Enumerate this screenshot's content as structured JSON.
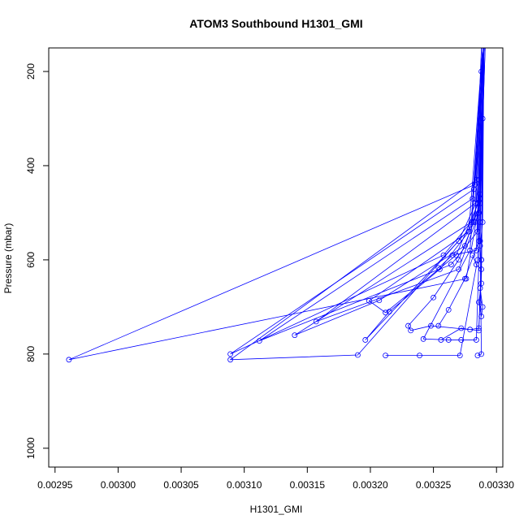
{
  "chart_data": {
    "type": "line",
    "title": "ATOM3 Southbound H1301_GMI",
    "xlabel": "H1301_GMI",
    "ylabel": "Pressure (mbar)",
    "xlim": [
      0.002945,
      0.003305
    ],
    "ylim": [
      1040,
      150
    ],
    "y_reversed": true,
    "grid": false,
    "series_color": "#0000ff",
    "marker": "open-circle",
    "x_ticks": [
      "0.00295",
      "0.00300",
      "0.00305",
      "0.00310",
      "0.00315",
      "0.00320",
      "0.00325",
      "0.00330"
    ],
    "x_tick_values": [
      0.00295,
      0.003,
      0.00305,
      0.0031,
      0.00315,
      0.0032,
      0.00325,
      0.0033
    ],
    "y_ticks": [
      "200",
      "400",
      "600",
      "800",
      "1000"
    ],
    "y_tick_values": [
      200,
      400,
      600,
      800,
      1000
    ],
    "series": [
      {
        "points": [
          [
            0.003288,
            200
          ],
          [
            0.003286,
            430
          ],
          [
            0.003282,
            520
          ],
          [
            0.00327,
            600
          ],
          [
            0.00325,
            680
          ],
          [
            0.00323,
            740
          ],
          [
            0.003232,
            750
          ],
          [
            0.003248,
            740
          ],
          [
            0.003286,
            750
          ],
          [
            0.003288,
            600
          ],
          [
            0.003289,
            300
          ],
          [
            0.00329,
            150
          ]
        ]
      },
      {
        "points": [
          [
            0.003289,
            150
          ],
          [
            0.003285,
            480
          ],
          [
            0.003278,
            540
          ],
          [
            0.003255,
            620
          ],
          [
            0.003215,
            710
          ],
          [
            0.003196,
            770
          ],
          [
            0.00327,
            560
          ],
          [
            0.003287,
            460
          ],
          [
            0.00329,
            150
          ]
        ]
      },
      {
        "points": [
          [
            0.00329,
            150
          ],
          [
            0.003283,
            440
          ],
          [
            0.002961,
            812
          ],
          [
            0.003276,
            640
          ],
          [
            0.003287,
            470
          ],
          [
            0.003291,
            150
          ]
        ]
      },
      {
        "points": [
          [
            0.003288,
            150
          ],
          [
            0.003284,
            430
          ],
          [
            0.003089,
            812
          ],
          [
            0.00319,
            802
          ],
          [
            0.003283,
            520
          ],
          [
            0.00329,
            150
          ]
        ]
      },
      {
        "points": [
          [
            0.003289,
            150
          ],
          [
            0.003282,
            450
          ],
          [
            0.003089,
            800
          ],
          [
            0.003258,
            590
          ],
          [
            0.003286,
            500
          ],
          [
            0.00329,
            150
          ]
        ]
      },
      {
        "points": [
          [
            0.00329,
            150
          ],
          [
            0.003281,
            470
          ],
          [
            0.003112,
            772
          ],
          [
            0.003264,
            610
          ],
          [
            0.003285,
            540
          ],
          [
            0.00329,
            150
          ]
        ]
      },
      {
        "points": [
          [
            0.003289,
            150
          ],
          [
            0.00328,
            520
          ],
          [
            0.00314,
            760
          ],
          [
            0.003207,
            686
          ],
          [
            0.003275,
            570
          ],
          [
            0.003287,
            480
          ],
          [
            0.00329,
            150
          ]
        ]
      },
      {
        "points": [
          [
            0.00329,
            150
          ],
          [
            0.003283,
            480
          ],
          [
            0.003157,
            731
          ],
          [
            0.00327,
            620
          ],
          [
            0.003286,
            500
          ],
          [
            0.00329,
            150
          ]
        ]
      },
      {
        "points": [
          [
            0.003289,
            150
          ],
          [
            0.003278,
            540
          ],
          [
            0.003199,
            687
          ],
          [
            0.003212,
            712
          ],
          [
            0.003268,
            590
          ],
          [
            0.003287,
            470
          ],
          [
            0.003291,
            150
          ]
        ]
      },
      {
        "points": [
          [
            0.00329,
            150
          ],
          [
            0.003279,
            580
          ],
          [
            0.003242,
            768
          ],
          [
            0.003262,
            770
          ],
          [
            0.003272,
            770
          ],
          [
            0.003284,
            770
          ],
          [
            0.003287,
            520
          ],
          [
            0.00329,
            150
          ]
        ]
      },
      {
        "points": [
          [
            0.003212,
            803
          ],
          [
            0.003239,
            803
          ],
          [
            0.003271,
            803
          ],
          [
            0.003285,
            600
          ],
          [
            0.003289,
            150
          ]
        ]
      },
      {
        "points": [
          [
            0.003254,
            740
          ],
          [
            0.003262,
            706
          ],
          [
            0.003275,
            640
          ],
          [
            0.003286,
            560
          ],
          [
            0.00329,
            150
          ]
        ]
      },
      {
        "points": [
          [
            0.003285,
            803
          ],
          [
            0.003288,
            800
          ],
          [
            0.003287,
            560
          ],
          [
            0.00329,
            150
          ]
        ]
      },
      {
        "points": [
          [
            0.003256,
            770
          ],
          [
            0.003272,
            745
          ],
          [
            0.003279,
            748
          ],
          [
            0.003286,
            745
          ],
          [
            0.003288,
            600
          ],
          [
            0.00329,
            150
          ]
        ]
      },
      {
        "points": [
          [
            0.003254,
            617
          ],
          [
            0.003265,
            590
          ],
          [
            0.003284,
            580
          ],
          [
            0.003289,
            150
          ]
        ]
      },
      {
        "points": [
          [
            0.003287,
            660
          ],
          [
            0.003289,
            700
          ],
          [
            0.003288,
            720
          ],
          [
            0.003286,
            690
          ],
          [
            0.003288,
            650
          ],
          [
            0.00329,
            150
          ]
        ]
      },
      {
        "points": [
          [
            0.003281,
            590
          ],
          [
            0.003284,
            610
          ],
          [
            0.003288,
            620
          ],
          [
            0.003287,
            570
          ],
          [
            0.003289,
            520
          ],
          [
            0.00329,
            150
          ]
        ]
      }
    ]
  }
}
